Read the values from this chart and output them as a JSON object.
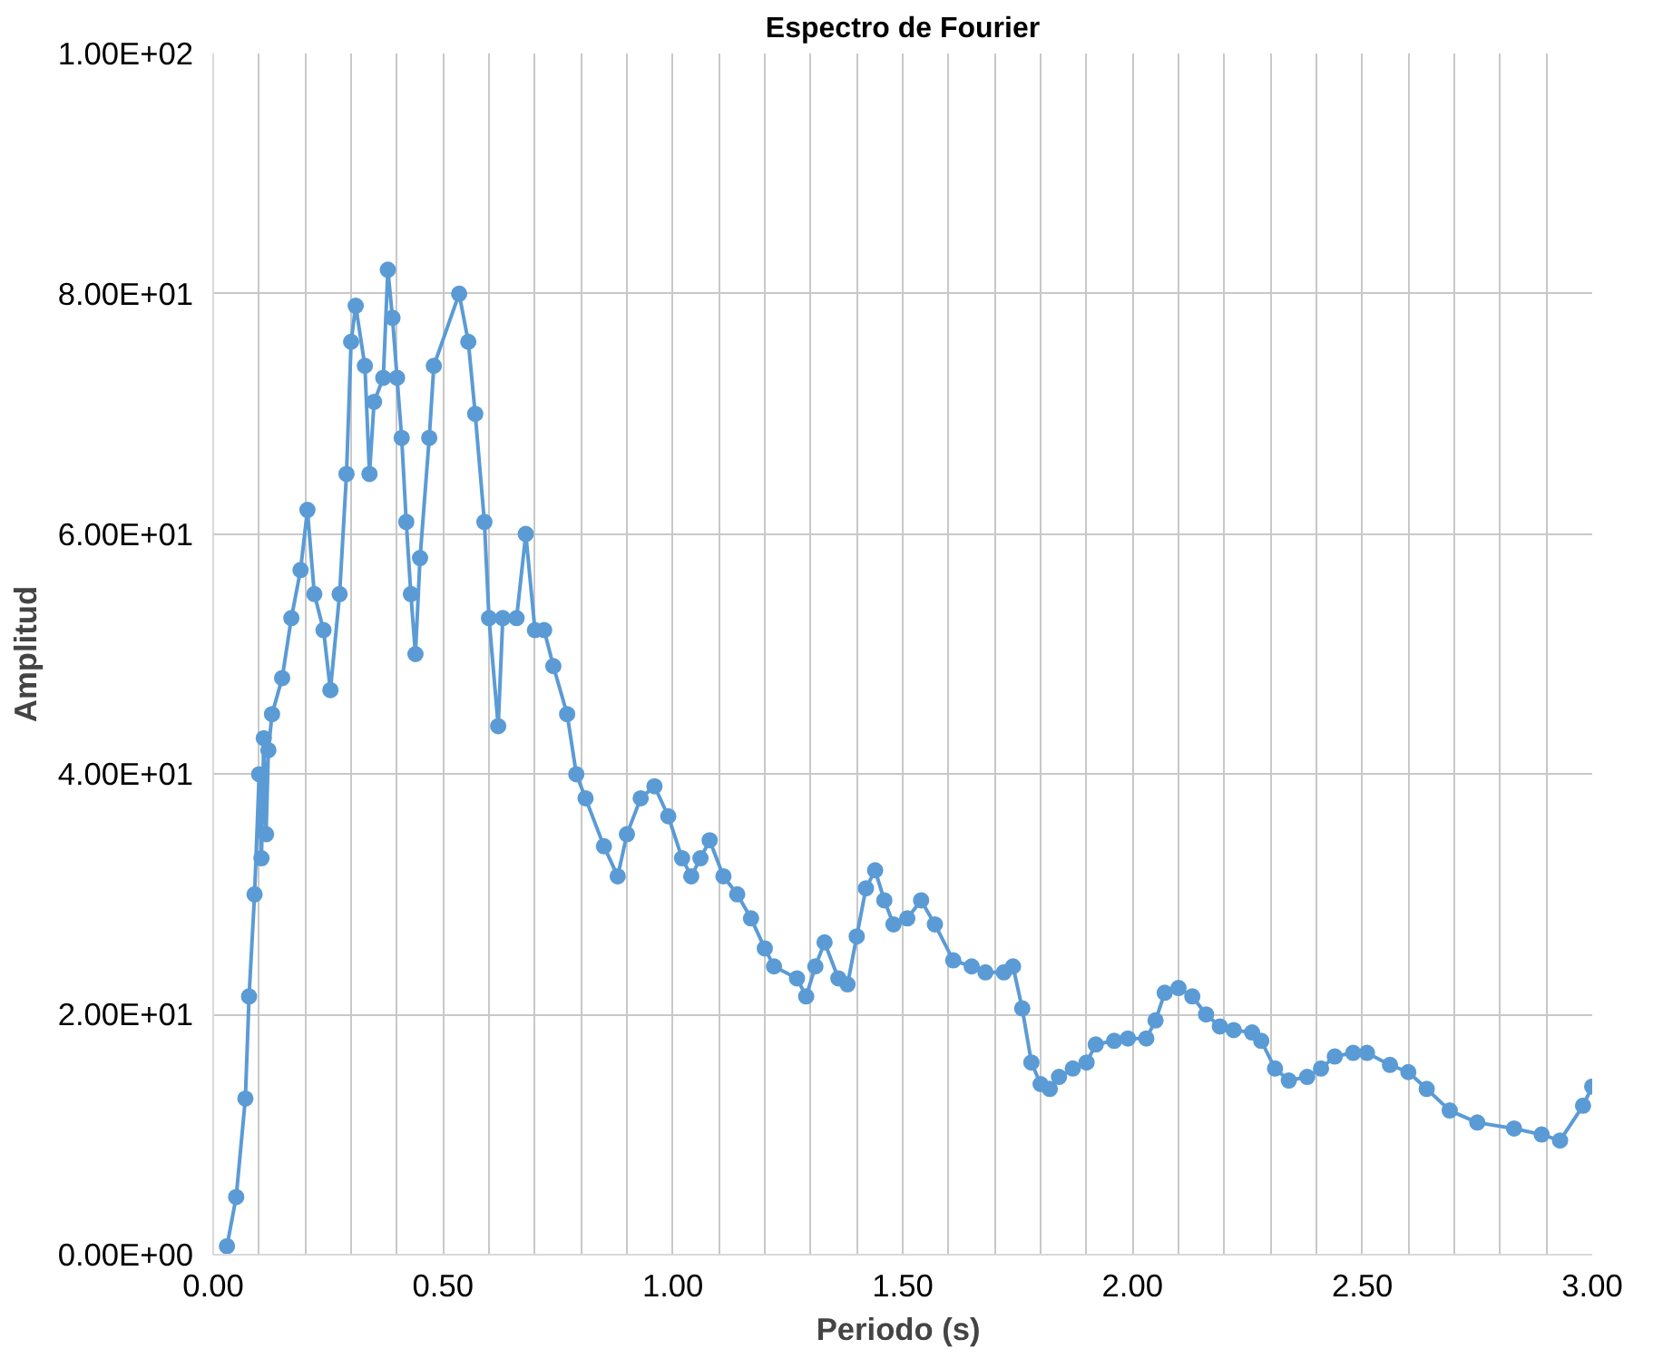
{
  "chart_data": {
    "type": "line",
    "title": "Espectro de Fourier",
    "xlabel": "Periodo  (s)",
    "ylabel": "Amplitud",
    "xlim": [
      0,
      3
    ],
    "ylim": [
      0,
      100
    ],
    "xticks": [
      {
        "value": 0,
        "label": "0.00"
      },
      {
        "value": 0.1,
        "label": null
      },
      {
        "value": 0.2,
        "label": null
      },
      {
        "value": 0.3,
        "label": null
      },
      {
        "value": 0.4,
        "label": null
      },
      {
        "value": 0.5,
        "label": "0.50"
      },
      {
        "value": 0.6,
        "label": null
      },
      {
        "value": 0.7,
        "label": null
      },
      {
        "value": 0.8,
        "label": null
      },
      {
        "value": 0.9,
        "label": null
      },
      {
        "value": 1,
        "label": "1.00"
      },
      {
        "value": 1.1,
        "label": null
      },
      {
        "value": 1.2,
        "label": null
      },
      {
        "value": 1.3,
        "label": null
      },
      {
        "value": 1.4,
        "label": null
      },
      {
        "value": 1.5,
        "label": "1.50"
      },
      {
        "value": 1.6,
        "label": null
      },
      {
        "value": 1.7,
        "label": null
      },
      {
        "value": 1.8,
        "label": null
      },
      {
        "value": 1.9,
        "label": null
      },
      {
        "value": 2,
        "label": "2.00"
      },
      {
        "value": 2.1,
        "label": null
      },
      {
        "value": 2.2,
        "label": null
      },
      {
        "value": 2.3,
        "label": null
      },
      {
        "value": 2.4,
        "label": null
      },
      {
        "value": 2.5,
        "label": "2.50"
      },
      {
        "value": 2.6,
        "label": null
      },
      {
        "value": 2.7,
        "label": null
      },
      {
        "value": 2.8,
        "label": null
      },
      {
        "value": 2.9,
        "label": null
      },
      {
        "value": 3,
        "label": "3.00"
      }
    ],
    "yticks": [
      {
        "value": 0,
        "label": "0.00E+00"
      },
      {
        "value": 20,
        "label": "2.00E+01"
      },
      {
        "value": 40,
        "label": "4.00E+01"
      },
      {
        "value": 60,
        "label": "6.00E+01"
      },
      {
        "value": 80,
        "label": "8.00E+01"
      },
      {
        "value": 100,
        "label": "1.00E+02"
      }
    ],
    "grid": true,
    "marker": "circle",
    "line_style": "solid",
    "series": [
      {
        "color": "#5b9bd5",
        "x": [
          0.03,
          0.05,
          0.07,
          0.078,
          0.09,
          0.1,
          0.105,
          0.11,
          0.115,
          0.12,
          0.128,
          0.15,
          0.17,
          0.19,
          0.205,
          0.22,
          0.24,
          0.255,
          0.275,
          0.29,
          0.3,
          0.31,
          0.33,
          0.34,
          0.35,
          0.37,
          0.38,
          0.39,
          0.4,
          0.41,
          0.42,
          0.43,
          0.44,
          0.45,
          0.47,
          0.48,
          0.535,
          0.555,
          0.57,
          0.59,
          0.6,
          0.62,
          0.63,
          0.66,
          0.68,
          0.7,
          0.72,
          0.74,
          0.77,
          0.79,
          0.81,
          0.85,
          0.88,
          0.9,
          0.93,
          0.96,
          0.99,
          1.02,
          1.04,
          1.06,
          1.08,
          1.11,
          1.14,
          1.17,
          1.2,
          1.22,
          1.27,
          1.29,
          1.31,
          1.33,
          1.36,
          1.38,
          1.4,
          1.42,
          1.44,
          1.46,
          1.48,
          1.51,
          1.54,
          1.57,
          1.61,
          1.65,
          1.68,
          1.72,
          1.74,
          1.76,
          1.78,
          1.8,
          1.82,
          1.84,
          1.87,
          1.9,
          1.92,
          1.96,
          1.99,
          2.03,
          2.05,
          2.07,
          2.1,
          2.13,
          2.16,
          2.19,
          2.22,
          2.26,
          2.28,
          2.31,
          2.34,
          2.38,
          2.41,
          2.44,
          2.48,
          2.51,
          2.56,
          2.6,
          2.64,
          2.69,
          2.75,
          2.83,
          2.89,
          2.93,
          2.98,
          3.0
        ],
        "values": [
          0.7,
          4.8,
          13,
          21.5,
          30,
          40,
          33,
          43,
          35,
          42,
          45,
          48,
          53,
          57,
          62,
          55,
          52,
          47,
          55,
          65,
          76,
          79,
          74,
          65,
          71,
          73,
          82,
          78,
          73,
          68,
          61,
          55,
          50,
          58,
          68,
          74,
          80,
          76,
          70,
          61,
          53,
          44,
          53,
          53,
          60,
          52,
          52,
          49,
          45,
          40,
          38,
          34,
          31.5,
          35,
          38,
          39,
          36.5,
          33,
          31.5,
          33,
          34.5,
          31.5,
          30,
          28,
          25.5,
          24,
          23,
          21.5,
          24,
          26,
          23,
          22.5,
          26.5,
          30.5,
          32,
          29.5,
          27.5,
          28,
          29.5,
          27.5,
          24.5,
          24,
          23.5,
          23.5,
          24,
          20.5,
          16,
          14.2,
          13.8,
          14.8,
          15.5,
          16,
          17.5,
          17.8,
          18,
          18,
          19.5,
          21.8,
          22.2,
          21.5,
          20,
          19,
          18.7,
          18.5,
          17.8,
          15.5,
          14.5,
          14.8,
          15.5,
          16.5,
          16.8,
          16.8,
          15.8,
          15.2,
          13.8,
          12,
          11,
          10.5,
          10,
          9.5,
          12.4,
          14
        ]
      }
    ]
  }
}
